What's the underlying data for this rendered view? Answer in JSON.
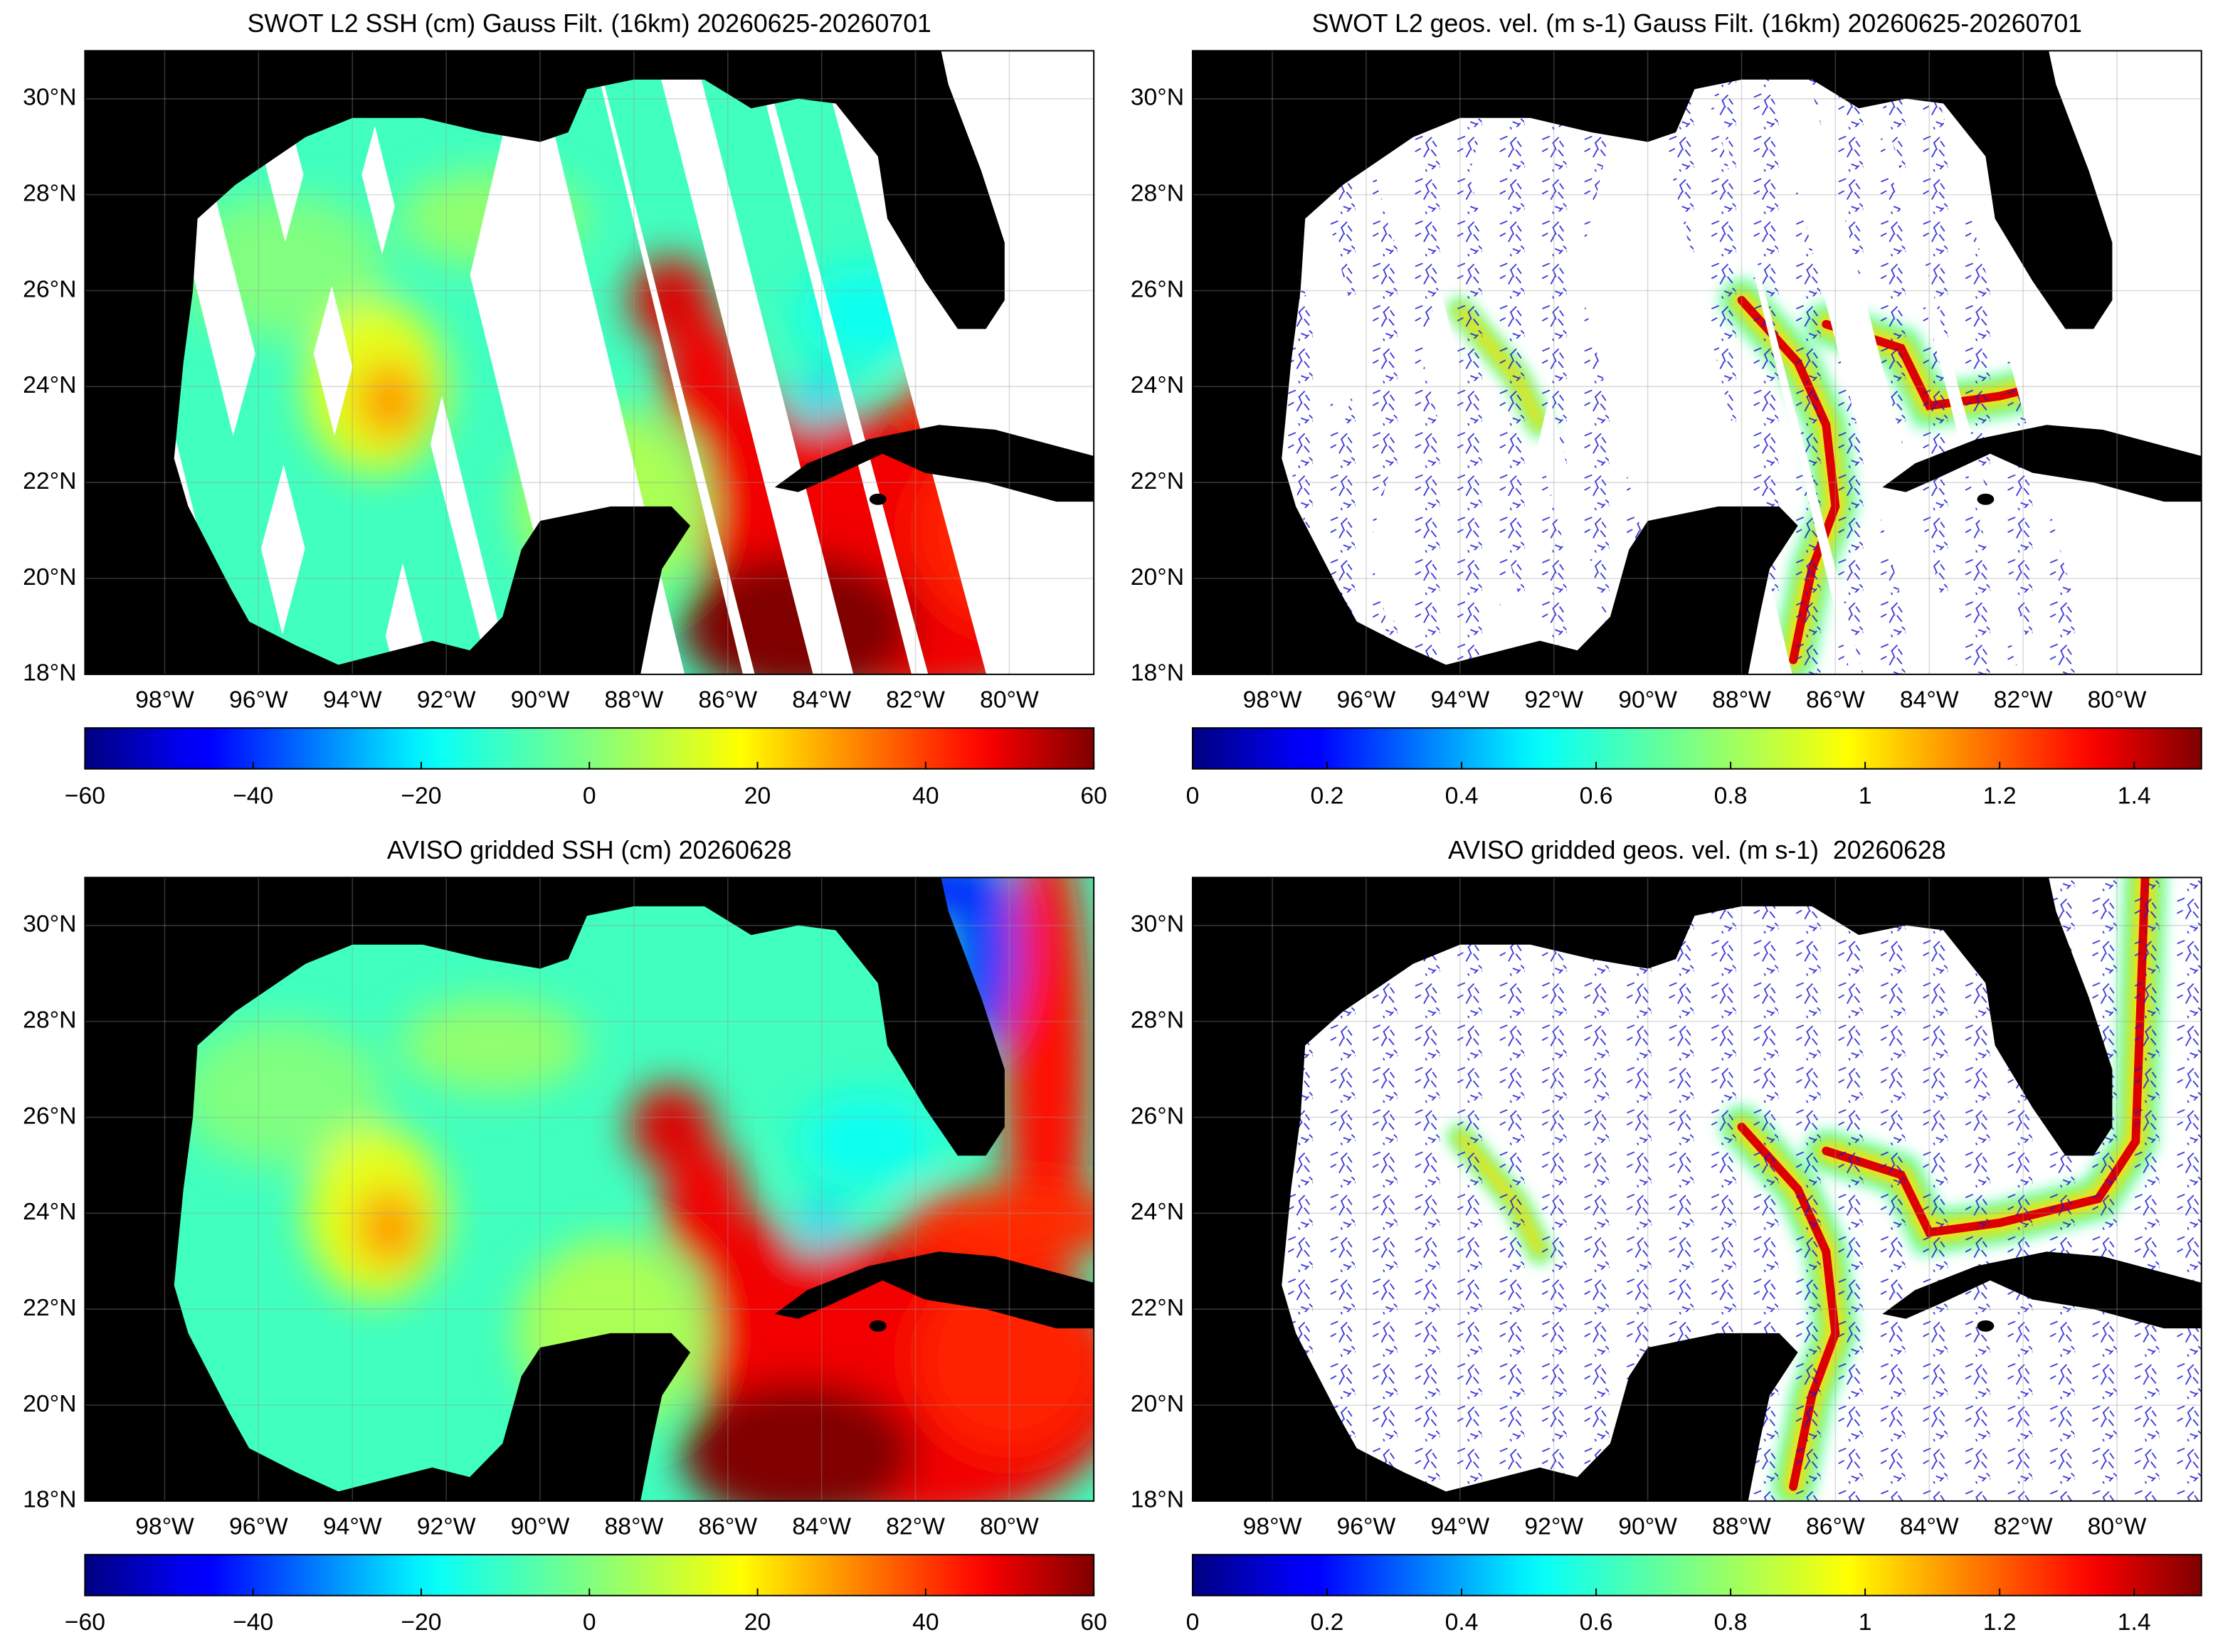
{
  "chart_data": [
    {
      "type": "map",
      "title": "SWOT L2 SSH (cm) Gauss Filt. (16km) 20260625-20260701",
      "xlim": [
        -99.7,
        -78.2
      ],
      "ylim": [
        18,
        31
      ],
      "grid": true,
      "xticks": [
        {
          "value": -98,
          "label": "98°W"
        },
        {
          "value": -96,
          "label": "96°W"
        },
        {
          "value": -94,
          "label": "94°W"
        },
        {
          "value": -92,
          "label": "92°W"
        },
        {
          "value": -90,
          "label": "90°W"
        },
        {
          "value": -88,
          "label": "88°W"
        },
        {
          "value": -86,
          "label": "86°W"
        },
        {
          "value": -84,
          "label": "84°W"
        },
        {
          "value": -82,
          "label": "82°W"
        },
        {
          "value": -80,
          "label": "80°W"
        }
      ],
      "yticks": [
        {
          "value": 18,
          "label": "18°N"
        },
        {
          "value": 20,
          "label": "20°N"
        },
        {
          "value": 22,
          "label": "22°N"
        },
        {
          "value": 24,
          "label": "24°N"
        },
        {
          "value": 26,
          "label": "26°N"
        },
        {
          "value": 28,
          "label": "28°N"
        },
        {
          "value": 30,
          "label": "30°N"
        }
      ],
      "colormap": "jet",
      "clim": [
        -60,
        60
      ],
      "cticks": [
        {
          "value": -60,
          "label": "−60"
        },
        {
          "value": -40,
          "label": "−40"
        },
        {
          "value": -20,
          "label": "−20"
        },
        0,
        20,
        40,
        60
      ]
    },
    {
      "type": "map",
      "title": "SWOT L2 geos. vel. (m s-1) Gauss Filt. (16km) 20260625-20260701",
      "xlim": [
        -99.7,
        -78.2
      ],
      "ylim": [
        18,
        31
      ],
      "grid": true,
      "xticks": [
        {
          "value": -98,
          "label": "98°W"
        },
        {
          "value": -96,
          "label": "96°W"
        },
        {
          "value": -94,
          "label": "94°W"
        },
        {
          "value": -92,
          "label": "92°W"
        },
        {
          "value": -90,
          "label": "90°W"
        },
        {
          "value": -88,
          "label": "88°W"
        },
        {
          "value": -86,
          "label": "86°W"
        },
        {
          "value": -84,
          "label": "84°W"
        },
        {
          "value": -82,
          "label": "82°W"
        },
        {
          "value": -80,
          "label": "80°W"
        }
      ],
      "yticks": [
        {
          "value": 18,
          "label": "18°N"
        },
        {
          "value": 20,
          "label": "20°N"
        },
        {
          "value": 22,
          "label": "22°N"
        },
        {
          "value": 24,
          "label": "24°N"
        },
        {
          "value": 26,
          "label": "26°N"
        },
        {
          "value": 28,
          "label": "28°N"
        },
        {
          "value": 30,
          "label": "30°N"
        }
      ],
      "colormap": "jet",
      "clim": [
        0,
        1.5
      ],
      "cticks": [
        0,
        0.2,
        0.4,
        0.6,
        0.8,
        1,
        1.2,
        1.4
      ]
    },
    {
      "type": "map",
      "title": "AVISO gridded SSH (cm) 20260628",
      "xlim": [
        -99.7,
        -78.2
      ],
      "ylim": [
        18,
        31
      ],
      "grid": true,
      "xticks": [
        {
          "value": -98,
          "label": "98°W"
        },
        {
          "value": -96,
          "label": "96°W"
        },
        {
          "value": -94,
          "label": "94°W"
        },
        {
          "value": -92,
          "label": "92°W"
        },
        {
          "value": -90,
          "label": "90°W"
        },
        {
          "value": -88,
          "label": "88°W"
        },
        {
          "value": -86,
          "label": "86°W"
        },
        {
          "value": -84,
          "label": "84°W"
        },
        {
          "value": -82,
          "label": "82°W"
        },
        {
          "value": -80,
          "label": "80°W"
        }
      ],
      "yticks": [
        {
          "value": 18,
          "label": "18°N"
        },
        {
          "value": 20,
          "label": "20°N"
        },
        {
          "value": 22,
          "label": "22°N"
        },
        {
          "value": 24,
          "label": "24°N"
        },
        {
          "value": 26,
          "label": "26°N"
        },
        {
          "value": 28,
          "label": "28°N"
        },
        {
          "value": 30,
          "label": "30°N"
        }
      ],
      "colormap": "jet",
      "clim": [
        -60,
        60
      ],
      "cticks": [
        {
          "value": -60,
          "label": "−60"
        },
        {
          "value": -40,
          "label": "−40"
        },
        {
          "value": -20,
          "label": "−20"
        },
        0,
        20,
        40,
        60
      ]
    },
    {
      "type": "map",
      "title": "AVISO gridded geos. vel. (m s-1)  20260628",
      "xlim": [
        -99.7,
        -78.2
      ],
      "ylim": [
        18,
        31
      ],
      "grid": true,
      "xticks": [
        {
          "value": -98,
          "label": "98°W"
        },
        {
          "value": -96,
          "label": "96°W"
        },
        {
          "value": -94,
          "label": "94°W"
        },
        {
          "value": -92,
          "label": "92°W"
        },
        {
          "value": -90,
          "label": "90°W"
        },
        {
          "value": -88,
          "label": "88°W"
        },
        {
          "value": -86,
          "label": "86°W"
        },
        {
          "value": -84,
          "label": "84°W"
        },
        {
          "value": -82,
          "label": "82°W"
        },
        {
          "value": -80,
          "label": "80°W"
        }
      ],
      "yticks": [
        {
          "value": 18,
          "label": "18°N"
        },
        {
          "value": 20,
          "label": "20°N"
        },
        {
          "value": 22,
          "label": "22°N"
        },
        {
          "value": 24,
          "label": "24°N"
        },
        {
          "value": 26,
          "label": "26°N"
        },
        {
          "value": 28,
          "label": "28°N"
        },
        {
          "value": 30,
          "label": "30°N"
        }
      ],
      "colormap": "jet",
      "clim": [
        0,
        1.5
      ],
      "cticks": [
        0,
        0.2,
        0.4,
        0.6,
        0.8,
        1,
        1.2,
        1.4
      ]
    }
  ]
}
